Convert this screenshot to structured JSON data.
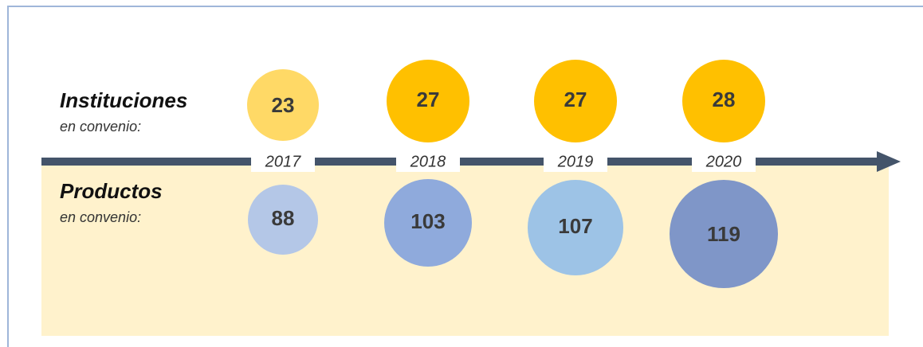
{
  "years": [
    "2017",
    "2018",
    "2019",
    "2020"
  ],
  "rows": [
    {
      "title": "Instituciones",
      "subtitle": "en convenio:",
      "values": [
        23,
        27,
        27,
        28
      ]
    },
    {
      "title": "Productos",
      "subtitle": "en convenio:",
      "values": [
        88,
        103,
        107,
        119
      ]
    }
  ]
}
